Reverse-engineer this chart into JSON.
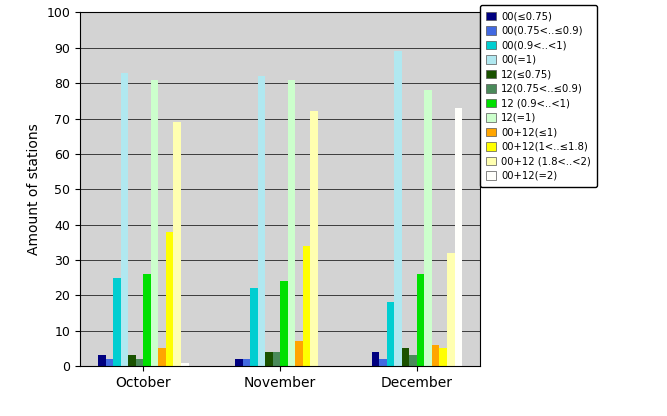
{
  "categories": [
    "October",
    "November",
    "December"
  ],
  "series": [
    {
      "label": "00(≤0.75)",
      "color": "#000080",
      "values": [
        3,
        2,
        4
      ]
    },
    {
      "label": "00(0.75<..≤0.9)",
      "color": "#4169E1",
      "values": [
        2,
        2,
        2
      ]
    },
    {
      "label": "00(0.9<..<1)",
      "color": "#00CED1",
      "values": [
        25,
        22,
        18
      ]
    },
    {
      "label": "00(=1)",
      "color": "#B0E8F0",
      "values": [
        83,
        82,
        89
      ]
    },
    {
      "label": "12(≤0.75)",
      "color": "#1A5200",
      "values": [
        3,
        4,
        5
      ]
    },
    {
      "label": "12(0.75<..≤0.9)",
      "color": "#4A8A5A",
      "values": [
        2,
        4,
        3
      ]
    },
    {
      "label": "12 (0.9<..<1)",
      "color": "#00E000",
      "values": [
        26,
        24,
        26
      ]
    },
    {
      "label": "12(=1)",
      "color": "#CCFFCC",
      "values": [
        81,
        81,
        78
      ]
    },
    {
      "label": "00+12(≤1)",
      "color": "#FFA500",
      "values": [
        5,
        7,
        6
      ]
    },
    {
      "label": "00+12(1<..≤1.8)",
      "color": "#FFFF00",
      "values": [
        38,
        34,
        5
      ]
    },
    {
      "label": "00+12 (1.8<..<2)",
      "color": "#FFFFB0",
      "values": [
        69,
        72,
        32
      ]
    },
    {
      "label": "00+12(=2)",
      "color": "#FFFFFB",
      "values": [
        1,
        0,
        73
      ]
    }
  ],
  "ylabel": "Amount of stations",
  "ylim": [
    0,
    100
  ],
  "yticks": [
    0,
    10,
    20,
    30,
    40,
    50,
    60,
    70,
    80,
    90,
    100
  ],
  "plot_area_color": "#D3D3D3",
  "fig_background": "#FFFFFF",
  "bar_width": 0.055,
  "figsize": [
    6.67,
    4.16
  ],
  "dpi": 100
}
